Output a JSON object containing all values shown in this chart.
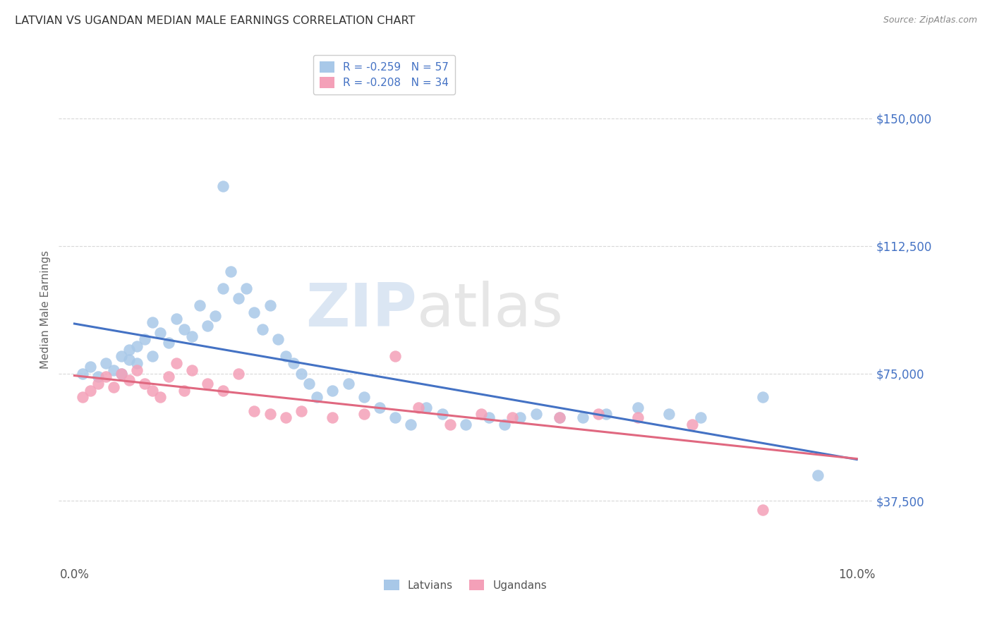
{
  "title": "LATVIAN VS UGANDAN MEDIAN MALE EARNINGS CORRELATION CHART",
  "source": "Source: ZipAtlas.com",
  "ylabel": "Median Male Earnings",
  "ytick_labels": [
    "$37,500",
    "$75,000",
    "$112,500",
    "$150,000"
  ],
  "ytick_values": [
    37500,
    75000,
    112500,
    150000
  ],
  "ylim": [
    18750,
    168750
  ],
  "xlim": [
    -0.002,
    0.102
  ],
  "latvian_color": "#a8c8e8",
  "ugandan_color": "#f4a0b8",
  "latvian_line_color": "#4472c4",
  "ugandan_line_color": "#e06880",
  "legend_latvian": "R = -0.259   N = 57",
  "legend_ugandan": "R = -0.208   N = 34",
  "legend_latvian_short": "Latvians",
  "legend_ugandan_short": "Ugandans",
  "watermark_zip": "ZIP",
  "watermark_atlas": "atlas",
  "background_color": "#ffffff",
  "grid_color": "#d8d8d8",
  "title_color": "#333333",
  "ytick_color": "#4472c4",
  "latvians_x": [
    0.001,
    0.002,
    0.003,
    0.004,
    0.005,
    0.006,
    0.006,
    0.007,
    0.007,
    0.008,
    0.008,
    0.009,
    0.01,
    0.01,
    0.011,
    0.012,
    0.013,
    0.014,
    0.015,
    0.016,
    0.017,
    0.018,
    0.019,
    0.019,
    0.02,
    0.021,
    0.022,
    0.023,
    0.024,
    0.025,
    0.026,
    0.027,
    0.028,
    0.029,
    0.03,
    0.031,
    0.033,
    0.035,
    0.037,
    0.039,
    0.041,
    0.043,
    0.045,
    0.047,
    0.05,
    0.053,
    0.055,
    0.057,
    0.059,
    0.062,
    0.065,
    0.068,
    0.072,
    0.076,
    0.08,
    0.088,
    0.095
  ],
  "latvians_y": [
    75000,
    77000,
    74000,
    78000,
    76000,
    80000,
    75000,
    82000,
    79000,
    83000,
    78000,
    85000,
    90000,
    80000,
    87000,
    84000,
    91000,
    88000,
    86000,
    95000,
    89000,
    92000,
    130000,
    100000,
    105000,
    97000,
    100000,
    93000,
    88000,
    95000,
    85000,
    80000,
    78000,
    75000,
    72000,
    68000,
    70000,
    72000,
    68000,
    65000,
    62000,
    60000,
    65000,
    63000,
    60000,
    62000,
    60000,
    62000,
    63000,
    62000,
    62000,
    63000,
    65000,
    63000,
    62000,
    68000,
    45000
  ],
  "ugandans_x": [
    0.001,
    0.002,
    0.003,
    0.004,
    0.005,
    0.006,
    0.007,
    0.008,
    0.009,
    0.01,
    0.011,
    0.012,
    0.013,
    0.014,
    0.015,
    0.017,
    0.019,
    0.021,
    0.023,
    0.025,
    0.027,
    0.029,
    0.033,
    0.037,
    0.041,
    0.044,
    0.048,
    0.052,
    0.056,
    0.062,
    0.067,
    0.072,
    0.079,
    0.088
  ],
  "ugandans_y": [
    68000,
    70000,
    72000,
    74000,
    71000,
    75000,
    73000,
    76000,
    72000,
    70000,
    68000,
    74000,
    78000,
    70000,
    76000,
    72000,
    70000,
    75000,
    64000,
    63000,
    62000,
    64000,
    62000,
    63000,
    80000,
    65000,
    60000,
    63000,
    62000,
    62000,
    63000,
    62000,
    60000,
    35000
  ]
}
